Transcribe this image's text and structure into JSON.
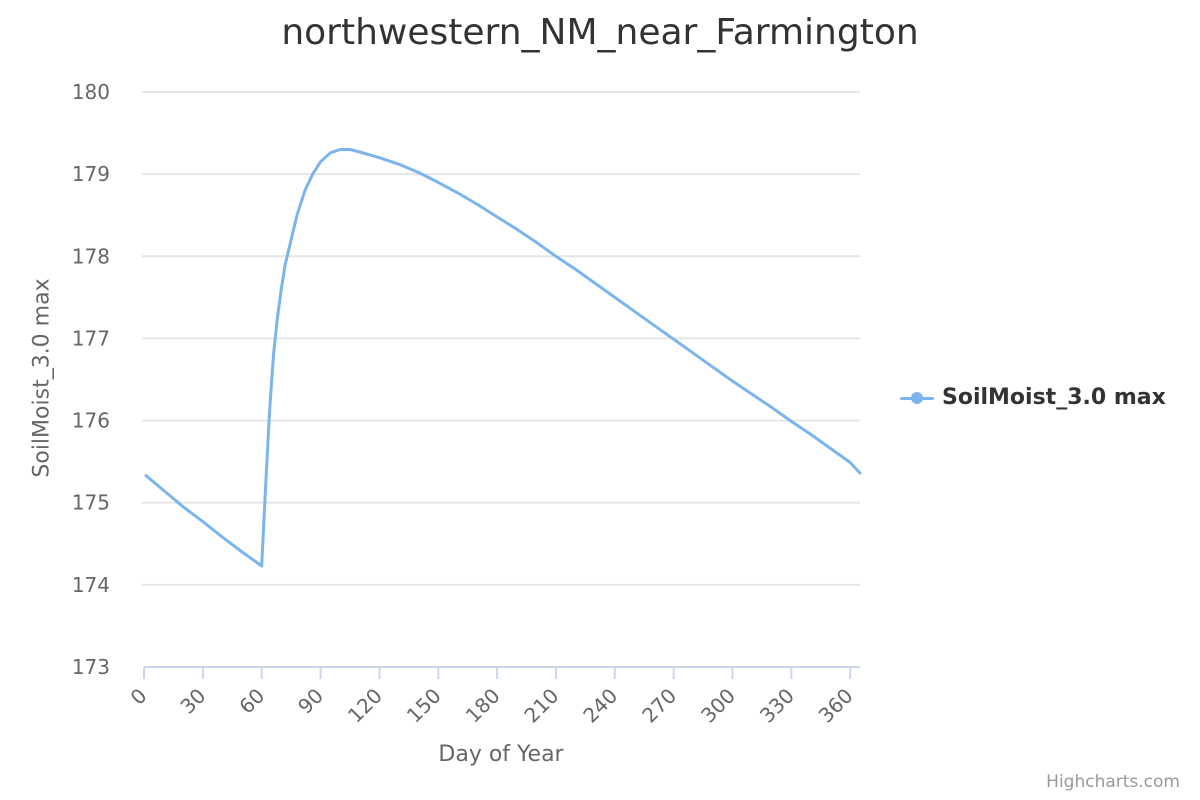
{
  "chart_data": {
    "type": "line",
    "title": "northwestern_NM_near_Farmington",
    "xlabel": "Day of Year",
    "ylabel": "SoilMoist_3.0 max",
    "xlim": [
      0,
      365
    ],
    "ylim": [
      173,
      180
    ],
    "x_ticks": [
      0,
      30,
      60,
      90,
      120,
      150,
      180,
      210,
      240,
      270,
      300,
      330,
      360
    ],
    "y_ticks": [
      173,
      174,
      175,
      176,
      177,
      178,
      179,
      180
    ],
    "grid": true,
    "legend_position": "right",
    "series": [
      {
        "name": "SoilMoist_3.0 max",
        "color": "#7cb5ec",
        "points": [
          [
            1,
            175.33
          ],
          [
            10,
            175.15
          ],
          [
            20,
            174.95
          ],
          [
            30,
            174.77
          ],
          [
            40,
            174.58
          ],
          [
            50,
            174.4
          ],
          [
            60,
            174.23
          ],
          [
            62,
            175.2
          ],
          [
            64,
            176.1
          ],
          [
            66,
            176.8
          ],
          [
            68,
            177.25
          ],
          [
            70,
            177.6
          ],
          [
            72,
            177.9
          ],
          [
            75,
            178.2
          ],
          [
            78,
            178.5
          ],
          [
            82,
            178.8
          ],
          [
            86,
            179.0
          ],
          [
            90,
            179.15
          ],
          [
            95,
            179.26
          ],
          [
            100,
            179.3
          ],
          [
            105,
            179.3
          ],
          [
            110,
            179.27
          ],
          [
            120,
            179.2
          ],
          [
            130,
            179.12
          ],
          [
            140,
            179.02
          ],
          [
            150,
            178.9
          ],
          [
            160,
            178.77
          ],
          [
            170,
            178.63
          ],
          [
            180,
            178.48
          ],
          [
            190,
            178.33
          ],
          [
            200,
            178.17
          ],
          [
            210,
            178.0
          ],
          [
            220,
            177.84
          ],
          [
            230,
            177.67
          ],
          [
            240,
            177.5
          ],
          [
            250,
            177.33
          ],
          [
            260,
            177.16
          ],
          [
            270,
            176.99
          ],
          [
            280,
            176.82
          ],
          [
            290,
            176.65
          ],
          [
            300,
            176.48
          ],
          [
            310,
            176.32
          ],
          [
            320,
            176.16
          ],
          [
            330,
            175.99
          ],
          [
            340,
            175.83
          ],
          [
            350,
            175.66
          ],
          [
            360,
            175.49
          ],
          [
            365,
            175.36
          ]
        ]
      }
    ]
  },
  "legend": {
    "label": "SoilMoist_3.0 max"
  },
  "credits": "Highcharts.com",
  "colors": {
    "series": "#7cb5ec",
    "grid": "#e6e6e6",
    "axis": "#ccd6eb"
  }
}
